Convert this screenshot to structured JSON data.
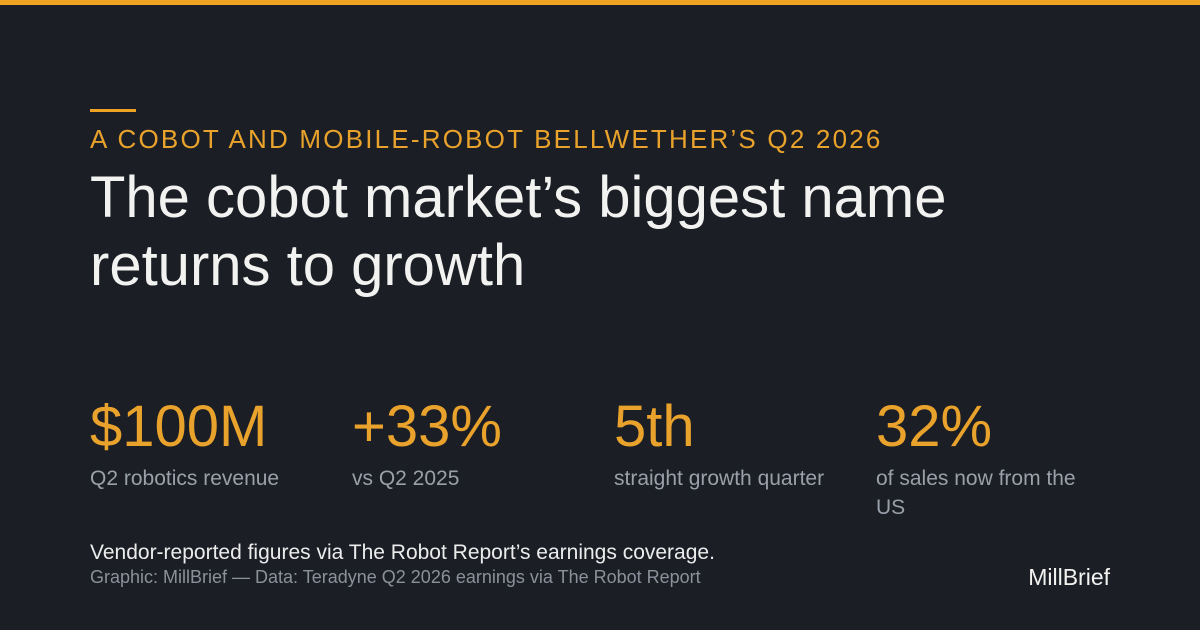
{
  "kicker": "A COBOT AND MOBILE-ROBOT BELLWETHER’S Q2 2026",
  "title_lines": [
    "The cobot market’s biggest name",
    "returns to growth"
  ],
  "stats": [
    {
      "value": "$100M",
      "label": "Q2 robotics revenue"
    },
    {
      "value": "+33%",
      "label": "vs Q2 2025"
    },
    {
      "value": "5th",
      "label": "straight growth quarter"
    },
    {
      "value": "32%",
      "label": "of sales now from the US"
    }
  ],
  "note": "Vendor-reported figures via The Robot Report’s earnings coverage.",
  "credit": "Graphic: MillBrief — Data: Teradyne Q2 2026 earnings via The Robot Report",
  "brand": "MillBrief"
}
